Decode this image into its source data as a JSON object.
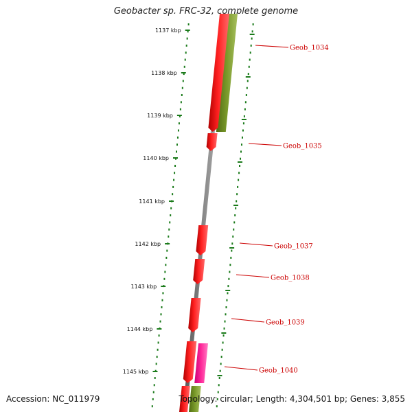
{
  "title": "Geobacter sp. FRC-32, complete genome",
  "footer": {
    "accession": "Accession: NC_011979",
    "summary": "Topology: circular; Length: 4,304,501 bp; Genes: 3,855"
  },
  "colors": {
    "backbone": "#7a7a7a",
    "tick": "#1a7a1a",
    "gene_forward": "#ff0000",
    "gene_forward_alt": "#ff33aa",
    "gene_reverse": "#6b8e23",
    "label": "#cc0000"
  },
  "ticks": [
    "1137 kbp",
    "1138 kbp",
    "1139 kbp",
    "1140 kbp",
    "1141 kbp",
    "1142 kbp",
    "1143 kbp",
    "1144 kbp",
    "1145 kbp"
  ],
  "genes": [
    {
      "label": "Geob_1034"
    },
    {
      "label": "Geob_1035"
    },
    {
      "label": "Geob_1037"
    },
    {
      "label": "Geob_1038"
    },
    {
      "label": "Geob_1039"
    },
    {
      "label": "Geob_1040"
    }
  ]
}
